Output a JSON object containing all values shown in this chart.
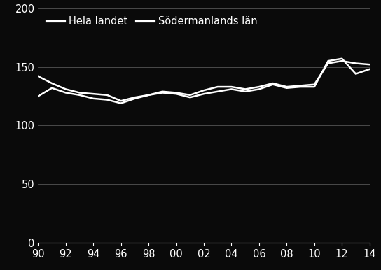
{
  "years": [
    1990,
    1991,
    1992,
    1993,
    1994,
    1995,
    1996,
    1997,
    1998,
    1999,
    2000,
    2001,
    2002,
    2003,
    2004,
    2005,
    2006,
    2007,
    2008,
    2009,
    2010,
    2011,
    2012,
    2013,
    2014
  ],
  "hela_landet": [
    142,
    136,
    131,
    128,
    127,
    126,
    121,
    124,
    126,
    129,
    128,
    126,
    130,
    133,
    133,
    131,
    133,
    136,
    133,
    134,
    135,
    153,
    155,
    153,
    152
  ],
  "sodermanlands_lan": [
    125,
    132,
    128,
    126,
    123,
    122,
    119,
    123,
    126,
    128,
    127,
    124,
    127,
    129,
    131,
    129,
    131,
    135,
    132,
    133,
    133,
    155,
    157,
    144,
    148
  ],
  "x_tick_labels": [
    "90",
    "92",
    "94",
    "96",
    "98",
    "00",
    "02",
    "04",
    "06",
    "08",
    "10",
    "12",
    "14"
  ],
  "x_tick_positions": [
    1990,
    1992,
    1994,
    1996,
    1998,
    2000,
    2002,
    2004,
    2006,
    2008,
    2010,
    2012,
    2014
  ],
  "ylim": [
    0,
    200
  ],
  "yticks": [
    0,
    50,
    100,
    150,
    200
  ],
  "legend_hela": "Hela landet",
  "legend_sod": "Södermanlands län",
  "line_color": "#ffffff",
  "bg_color": "#0a0a0a",
  "text_color": "#ffffff",
  "grid_color": "#4a4a4a",
  "linewidth": 1.8,
  "legend_fontsize": 10.5,
  "tick_fontsize": 10.5
}
